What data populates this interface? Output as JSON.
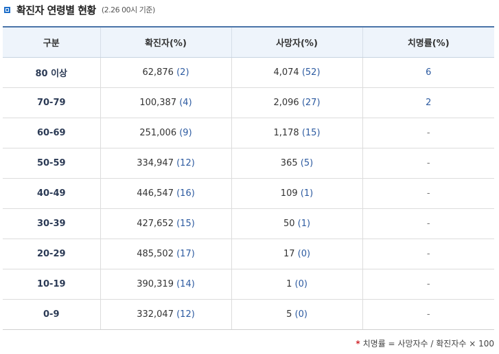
{
  "header": {
    "title": "확진자 연령별 현황",
    "subtitle": "(2.26 00시 기준)"
  },
  "table": {
    "columns": [
      "구분",
      "확진자(%)",
      "사망자(%)",
      "치명률(%)"
    ],
    "rows": [
      {
        "age": "80 이상",
        "cases": "62,876",
        "cases_pct": "(2)",
        "deaths": "4,074",
        "deaths_pct": "(52)",
        "fatality": "6"
      },
      {
        "age": "70-79",
        "cases": "100,387",
        "cases_pct": "(4)",
        "deaths": "2,096",
        "deaths_pct": "(27)",
        "fatality": "2"
      },
      {
        "age": "60-69",
        "cases": "251,006",
        "cases_pct": "(9)",
        "deaths": "1,178",
        "deaths_pct": "(15)",
        "fatality": "-"
      },
      {
        "age": "50-59",
        "cases": "334,947",
        "cases_pct": "(12)",
        "deaths": "365",
        "deaths_pct": "(5)",
        "fatality": "-"
      },
      {
        "age": "40-49",
        "cases": "446,547",
        "cases_pct": "(16)",
        "deaths": "109",
        "deaths_pct": "(1)",
        "fatality": "-"
      },
      {
        "age": "30-39",
        "cases": "427,652",
        "cases_pct": "(15)",
        "deaths": "50",
        "deaths_pct": "(1)",
        "fatality": "-"
      },
      {
        "age": "20-29",
        "cases": "485,502",
        "cases_pct": "(17)",
        "deaths": "17",
        "deaths_pct": "(0)",
        "fatality": "-"
      },
      {
        "age": "10-19",
        "cases": "390,319",
        "cases_pct": "(14)",
        "deaths": "1",
        "deaths_pct": "(0)",
        "fatality": "-"
      },
      {
        "age": "0-9",
        "cases": "332,047",
        "cases_pct": "(12)",
        "deaths": "5",
        "deaths_pct": "(0)",
        "fatality": "-"
      }
    ]
  },
  "footnote": {
    "marker": "*",
    "text": "치명률 = 사망자수 / 확진자수 × 100"
  },
  "colors": {
    "accent": "#1f6fc9",
    "header_bg": "#eef4fb",
    "header_border": "#4a74a8",
    "value_blue": "#2c5aa0",
    "star_red": "#d0262b"
  }
}
